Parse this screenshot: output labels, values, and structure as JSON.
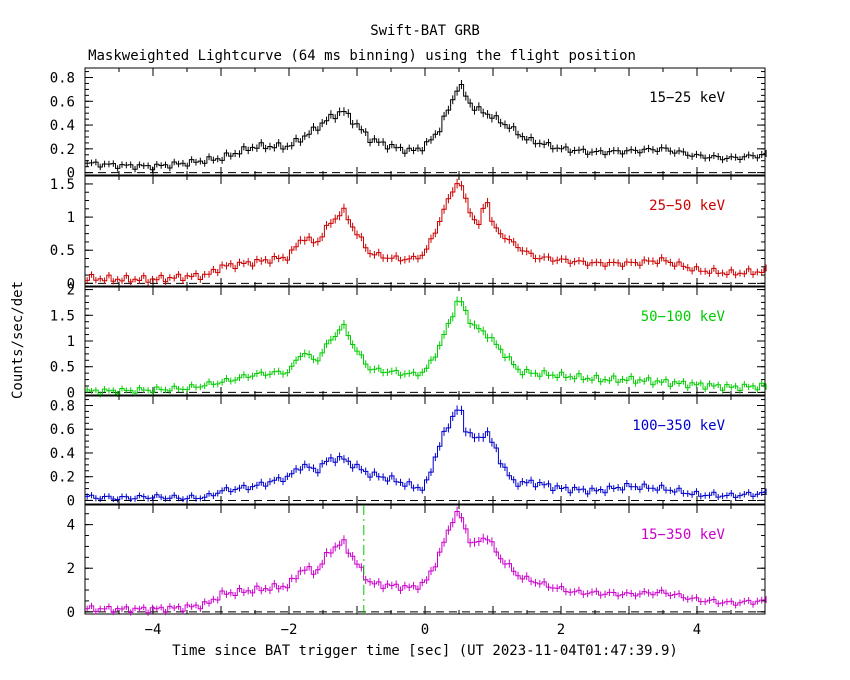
{
  "chart_data": {
    "type": "line",
    "title": "Swift-BAT GRB",
    "subtitle": "Maskweighted Lightcurve (64 ms binning) using the flight position",
    "xlabel": "Time since BAT trigger time [sec] (UT 2023-11-04T01:47:39.9)",
    "ylabel": "Counts/sec/det",
    "xlim": [
      -5,
      5
    ],
    "x_ticks": [
      -4,
      -2,
      0,
      2,
      4
    ],
    "marker_line_x": -0.9,
    "colors": {
      "axes": "#000000",
      "marker_line": "#00cc00"
    },
    "panels": [
      {
        "name": "15-25 keV",
        "label": "15−25 keV",
        "color": "#000000",
        "ylim": [
          -0.02,
          0.88
        ],
        "yticks": [
          0,
          0.2,
          0.4,
          0.6,
          0.8
        ],
        "ytick_labels": [
          "0",
          "0.2",
          "0.4",
          "0.6",
          "0.8"
        ],
        "x": [
          -5,
          -4.5,
          -4,
          -3.5,
          -3,
          -2.5,
          -2,
          -1.7,
          -1.4,
          -1.2,
          -1.0,
          -0.8,
          -0.5,
          -0.2,
          0,
          0.2,
          0.4,
          0.5,
          0.7,
          0.9,
          1.2,
          1.5,
          2,
          2.5,
          3,
          3.5,
          4,
          4.5,
          5
        ],
        "y": [
          0.08,
          0.06,
          0.05,
          0.08,
          0.12,
          0.22,
          0.22,
          0.33,
          0.46,
          0.52,
          0.4,
          0.28,
          0.22,
          0.18,
          0.22,
          0.35,
          0.6,
          0.75,
          0.55,
          0.5,
          0.4,
          0.28,
          0.2,
          0.17,
          0.18,
          0.2,
          0.14,
          0.12,
          0.15
        ]
      },
      {
        "name": "25-50 keV",
        "label": "25−50 keV",
        "color": "#cc0000",
        "ylim": [
          -0.04,
          1.62
        ],
        "yticks": [
          0,
          0.5,
          1,
          1.5
        ],
        "ytick_labels": [
          "0",
          "0.5",
          "1",
          "1.5"
        ],
        "x": [
          -5,
          -4.5,
          -4,
          -3.5,
          -3.2,
          -3,
          -2.5,
          -2,
          -1.8,
          -1.6,
          -1.4,
          -1.2,
          -1.0,
          -0.8,
          -0.5,
          -0.2,
          0,
          0.2,
          0.4,
          0.5,
          0.7,
          0.8,
          0.9,
          1.0,
          1.3,
          1.6,
          2,
          2.5,
          3,
          3.5,
          4,
          4.5,
          5
        ],
        "y": [
          0.08,
          0.06,
          0.06,
          0.1,
          0.12,
          0.25,
          0.32,
          0.4,
          0.7,
          0.6,
          0.9,
          1.1,
          0.75,
          0.45,
          0.38,
          0.36,
          0.45,
          0.9,
          1.4,
          1.55,
          1.0,
          0.85,
          1.35,
          0.85,
          0.6,
          0.4,
          0.35,
          0.3,
          0.3,
          0.35,
          0.2,
          0.15,
          0.18
        ]
      },
      {
        "name": "50-100 keV",
        "label": "50−100 keV",
        "color": "#00cc00",
        "ylim": [
          -0.05,
          2.05
        ],
        "yticks": [
          0,
          0.5,
          1,
          1.5,
          2
        ],
        "ytick_labels": [
          "0",
          "0.5",
          "1",
          "1.5",
          "2"
        ],
        "x": [
          -5,
          -4.5,
          -4,
          -3.5,
          -3,
          -2.5,
          -2,
          -1.8,
          -1.6,
          -1.4,
          -1.2,
          -1.0,
          -0.8,
          -0.5,
          -0.2,
          0,
          0.2,
          0.4,
          0.5,
          0.7,
          0.9,
          1.1,
          1.4,
          1.8,
          2.2,
          2.6,
          3,
          3.5,
          4,
          4.5,
          5
        ],
        "y": [
          0.02,
          0.03,
          0.05,
          0.08,
          0.2,
          0.35,
          0.4,
          0.8,
          0.6,
          1.0,
          1.3,
          0.8,
          0.45,
          0.4,
          0.35,
          0.4,
          0.85,
          1.5,
          1.85,
          1.3,
          1.15,
          0.85,
          0.4,
          0.35,
          0.3,
          0.25,
          0.25,
          0.2,
          0.15,
          0.1,
          0.12
        ]
      },
      {
        "name": "100-350 keV",
        "label": "100−350 keV",
        "color": "#0000cc",
        "ylim": [
          -0.03,
          0.88
        ],
        "yticks": [
          0,
          0.2,
          0.4,
          0.6,
          0.8
        ],
        "ytick_labels": [
          "0",
          "0.2",
          "0.4",
          "0.6",
          "0.8"
        ],
        "x": [
          -5,
          -4.5,
          -4,
          -3.5,
          -3.2,
          -3,
          -2.5,
          -2,
          -1.8,
          -1.6,
          -1.4,
          -1.2,
          -1.0,
          -0.8,
          -0.5,
          -0.2,
          0,
          0.2,
          0.4,
          0.5,
          0.6,
          0.8,
          0.9,
          1.1,
          1.3,
          1.6,
          2,
          2.5,
          3,
          3.5,
          4,
          4.5,
          5
        ],
        "y": [
          0.03,
          0.02,
          0.03,
          0.02,
          0.03,
          0.08,
          0.12,
          0.2,
          0.3,
          0.25,
          0.35,
          0.35,
          0.28,
          0.22,
          0.18,
          0.12,
          0.1,
          0.45,
          0.7,
          0.8,
          0.6,
          0.5,
          0.6,
          0.35,
          0.15,
          0.15,
          0.1,
          0.08,
          0.12,
          0.1,
          0.05,
          0.04,
          0.06
        ]
      },
      {
        "name": "15-350 keV",
        "label": "15−350 keV",
        "color": "#cc00cc",
        "ylim": [
          -0.1,
          4.9
        ],
        "yticks": [
          0,
          2,
          4
        ],
        "ytick_labels": [
          "0",
          "2",
          "4"
        ],
        "x": [
          -5,
          -4.5,
          -4,
          -3.5,
          -3.2,
          -3,
          -2.5,
          -2,
          -1.8,
          -1.6,
          -1.4,
          -1.2,
          -1.0,
          -0.8,
          -0.5,
          -0.2,
          0,
          0.2,
          0.4,
          0.5,
          0.7,
          0.9,
          1.1,
          1.4,
          1.8,
          2.2,
          2.6,
          3,
          3.5,
          4,
          4.5,
          5
        ],
        "y": [
          0.15,
          0.12,
          0.12,
          0.2,
          0.35,
          0.8,
          1.0,
          1.2,
          2.0,
          1.8,
          2.8,
          3.2,
          2.2,
          1.3,
          1.2,
          1.1,
          1.3,
          2.5,
          4.2,
          4.6,
          3.0,
          3.5,
          2.5,
          1.6,
          1.2,
          0.9,
          0.85,
          0.8,
          0.9,
          0.55,
          0.4,
          0.5
        ]
      }
    ]
  }
}
